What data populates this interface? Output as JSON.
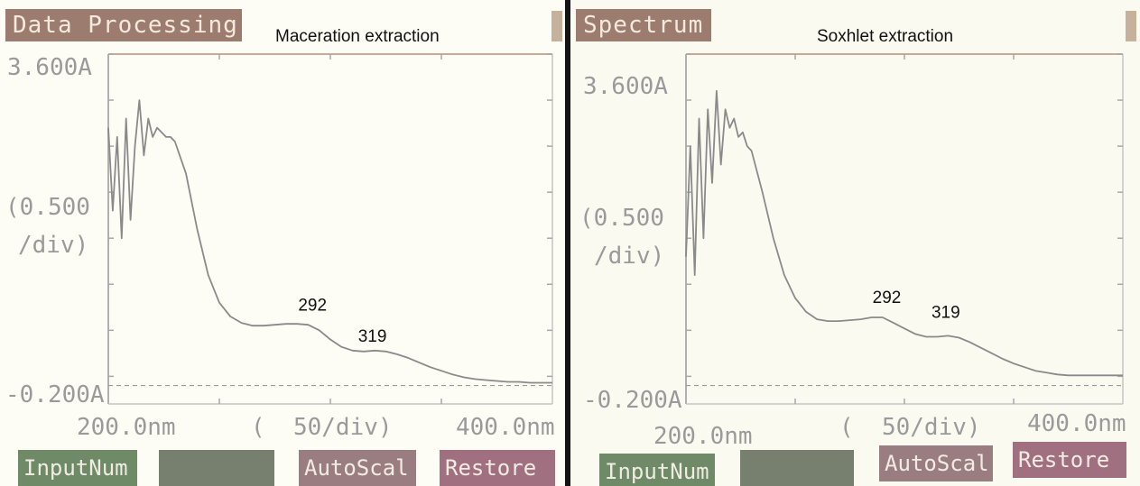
{
  "panels": [
    {
      "mode": "Data Processing",
      "title": "Maceration extraction",
      "y_max_label": "3.600A",
      "y_min_label": "-0.200A",
      "y_div_label_1": "(0.500",
      "y_div_label_2": "/div)",
      "x_min_label": "200.0nm",
      "x_div_label": "(  50/div)",
      "x_max_label": "400.0nm",
      "peaks": [
        {
          "label": "292",
          "x": 292,
          "y": 0.6
        },
        {
          "label": "319",
          "x": 319,
          "y": 0.26
        }
      ],
      "softkeys": [
        "InputNum",
        "",
        "AutoScal",
        "Restore"
      ]
    },
    {
      "mode": "Spectrum",
      "title": "Soxhlet extraction",
      "y_max_label": "3.600A",
      "y_min_label": "-0.200A",
      "y_div_label_1": "(0.500",
      "y_div_label_2": "/div)",
      "x_min_label": "200.0nm",
      "x_div_label": "(  50/div)",
      "x_max_label": "400.0nm",
      "peaks": [
        {
          "label": "292",
          "x": 292,
          "y": 0.68
        },
        {
          "label": "319",
          "x": 319,
          "y": 0.52
        }
      ],
      "softkeys": [
        "InputNum",
        "",
        "AutoScal",
        "Restore"
      ]
    }
  ],
  "colors": {
    "spectrum_line": "#8a8a8a",
    "axis": "#b0b0b0",
    "frame_top": "#c9a99a",
    "key_green": "#6f8a66",
    "key_mauve": "#9a7d80"
  },
  "chart_data": [
    {
      "type": "line",
      "title": "Maceration extraction",
      "xlabel": "",
      "ylabel": "",
      "xlim": [
        200,
        400
      ],
      "ylim": [
        -0.2,
        3.6
      ],
      "x_tick_step": 50,
      "y_tick_step": 0.5,
      "grid": false,
      "baseline": 0,
      "series": [
        {
          "x": [
            200,
            202,
            204,
            206,
            208,
            210,
            212,
            214,
            216,
            218,
            220,
            222,
            224,
            226,
            228,
            230,
            235,
            240,
            245,
            250,
            255,
            260,
            265,
            270,
            275,
            280,
            285,
            290,
            295,
            300,
            305,
            310,
            315,
            320,
            325,
            330,
            335,
            340,
            345,
            350,
            355,
            360,
            365,
            370,
            375,
            380,
            385,
            390,
            395,
            400
          ],
          "y": [
            2.8,
            1.9,
            2.7,
            1.6,
            2.9,
            1.8,
            2.6,
            3.1,
            2.5,
            2.9,
            2.7,
            2.8,
            2.75,
            2.7,
            2.7,
            2.65,
            2.3,
            1.7,
            1.2,
            0.9,
            0.75,
            0.68,
            0.65,
            0.65,
            0.66,
            0.67,
            0.67,
            0.66,
            0.6,
            0.5,
            0.42,
            0.38,
            0.37,
            0.38,
            0.37,
            0.34,
            0.3,
            0.25,
            0.2,
            0.16,
            0.12,
            0.09,
            0.07,
            0.06,
            0.05,
            0.04,
            0.04,
            0.03,
            0.03,
            0.03
          ]
        }
      ]
    },
    {
      "type": "line",
      "title": "Soxhlet extraction",
      "xlabel": "",
      "ylabel": "",
      "xlim": [
        200,
        400
      ],
      "ylim": [
        -0.2,
        3.6
      ],
      "x_tick_step": 50,
      "y_tick_step": 0.5,
      "grid": false,
      "baseline": 0,
      "series": [
        {
          "x": [
            200,
            202,
            204,
            206,
            208,
            210,
            212,
            214,
            216,
            218,
            220,
            222,
            224,
            226,
            228,
            230,
            235,
            240,
            245,
            250,
            255,
            260,
            265,
            270,
            275,
            280,
            285,
            290,
            295,
            300,
            305,
            310,
            315,
            320,
            325,
            330,
            335,
            340,
            345,
            350,
            355,
            360,
            365,
            370,
            375,
            380,
            385,
            390,
            395,
            400
          ],
          "y": [
            1.4,
            2.6,
            1.2,
            2.9,
            1.6,
            3.0,
            2.2,
            3.2,
            2.4,
            3.0,
            2.8,
            2.9,
            2.7,
            2.75,
            2.6,
            2.55,
            2.1,
            1.6,
            1.2,
            0.95,
            0.8,
            0.72,
            0.7,
            0.7,
            0.71,
            0.72,
            0.74,
            0.74,
            0.68,
            0.62,
            0.56,
            0.53,
            0.53,
            0.54,
            0.52,
            0.47,
            0.41,
            0.35,
            0.29,
            0.24,
            0.2,
            0.16,
            0.14,
            0.12,
            0.11,
            0.11,
            0.11,
            0.11,
            0.11,
            0.11
          ]
        }
      ]
    }
  ]
}
